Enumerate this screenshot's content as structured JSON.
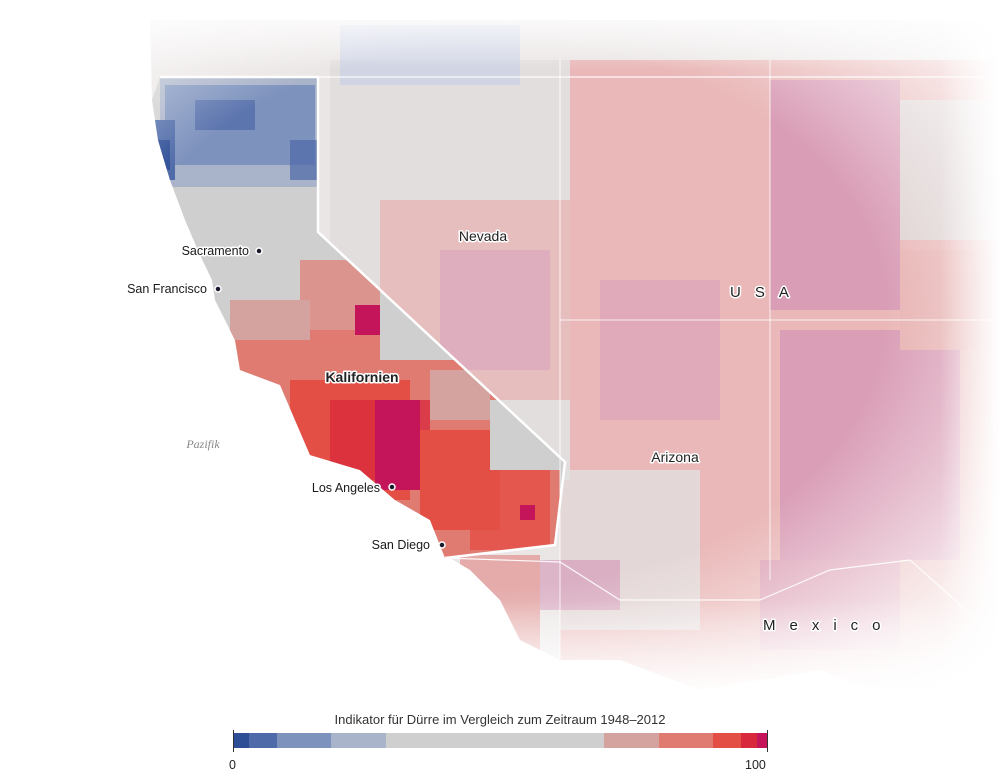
{
  "map": {
    "labels": {
      "nevada": "Nevada",
      "usa": "USA",
      "arizona": "Arizona",
      "mexico": "Mexico",
      "kalifornien": "Kalifornien",
      "pazifik": "Pazifik"
    },
    "cities": [
      {
        "name": "Sacramento"
      },
      {
        "name": "San Francisco"
      },
      {
        "name": "Los Angeles"
      },
      {
        "name": "San Diego"
      }
    ],
    "colors": {
      "very_wet": "#2e4e96",
      "wet": "#4e6aa8",
      "moist": "#7d92bd",
      "slightly_moist": "#a9b3c9",
      "normal": "#cfcfcf",
      "slightly_dry": "#d4a3a0",
      "dry": "#e07b72",
      "very_dry": "#e44f45",
      "extreme": "#d8283c",
      "exceptional": "#c4155a",
      "dry_pink": "#d394b6",
      "state_border": "#ffffff"
    }
  },
  "legend": {
    "title": "Indikator für Dürre im Vergleich zum Zeitraum 1948–2012",
    "min_label": "0",
    "max_label": "100",
    "segments": [
      {
        "color": "#2e4e96",
        "span": 3
      },
      {
        "color": "#4e6aa8",
        "span": 5
      },
      {
        "color": "#7d92bd",
        "span": 10
      },
      {
        "color": "#a9b3c9",
        "span": 10
      },
      {
        "color": "#cfcfcf",
        "span": 40
      },
      {
        "color": "#d4a3a0",
        "span": 10
      },
      {
        "color": "#e07b72",
        "span": 10
      },
      {
        "color": "#e44f45",
        "span": 5
      },
      {
        "color": "#d8283c",
        "span": 3
      },
      {
        "color": "#c4155a",
        "span": 2
      }
    ]
  }
}
